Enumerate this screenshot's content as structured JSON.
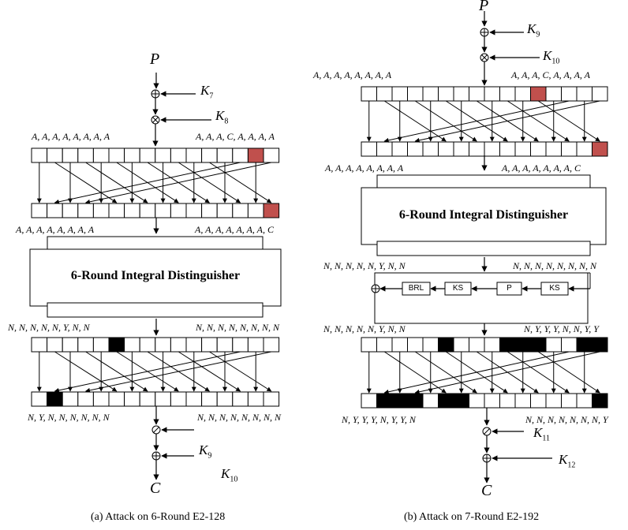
{
  "panel_a": {
    "plaintext": "P",
    "ciphertext": "C",
    "keys": [
      {
        "base": "K",
        "sub": "7"
      },
      {
        "base": "K",
        "sub": "8"
      },
      {
        "base": "K",
        "sub": "9"
      },
      {
        "base": "K",
        "sub": "10"
      }
    ],
    "in_left": "A, A, A, A, A, A, A, A",
    "in_right": "A, A, A, C, A, A, A, A",
    "mid_left": "A, A, A, A, A, A, A, A",
    "mid_right": "A, A, A, A, A, A, A, C",
    "distinguisher": "6-Round Integral Distinguisher",
    "out_left": "N, N, N, N, N, Y, N, N",
    "out_right": "N, N, N, N, N, N, N, N",
    "bot_left": "N, Y, N, N, N, N, N, N",
    "bot_right": "N, N, N, N, N, N, N, N",
    "caption": "(a) Attack on 6-Round E2-128"
  },
  "panel_b": {
    "plaintext": "P",
    "ciphertext": "C",
    "keys": [
      {
        "base": "K",
        "sub": "9"
      },
      {
        "base": "K",
        "sub": "10"
      },
      {
        "base": "K",
        "sub": "11"
      },
      {
        "base": "K",
        "sub": "12"
      }
    ],
    "in_left": "A, A, A, A, A, A, A, A",
    "in_right": "A, A, A, C, A, A, A, A",
    "mid_left": "A, A, A, A, A, A, A, A",
    "mid_right": "A, A, A, A, A, A, A, C",
    "distinguisher": "6-Round Integral Distinguisher",
    "out_left": "N, N, N, N, N, Y, N, N",
    "out_right": "N, N, N, N, N, N, N, N",
    "f_boxes": [
      "BRL",
      "KS",
      "P",
      "KS"
    ],
    "lr_left": "N, N, N, N, N, Y, N, N",
    "lr_right": "N, Y, Y, Y, N, N, Y, Y",
    "bot_left": "N, Y, Y, Y, N, Y, Y, N",
    "bot_right": "N, N, N, N, N, N, N, Y",
    "caption": "(b) Attack on 7-Round E2-192"
  },
  "colors": {
    "constant_cell": "#c0504d",
    "active_byte": "#000000",
    "line": "#000000"
  }
}
